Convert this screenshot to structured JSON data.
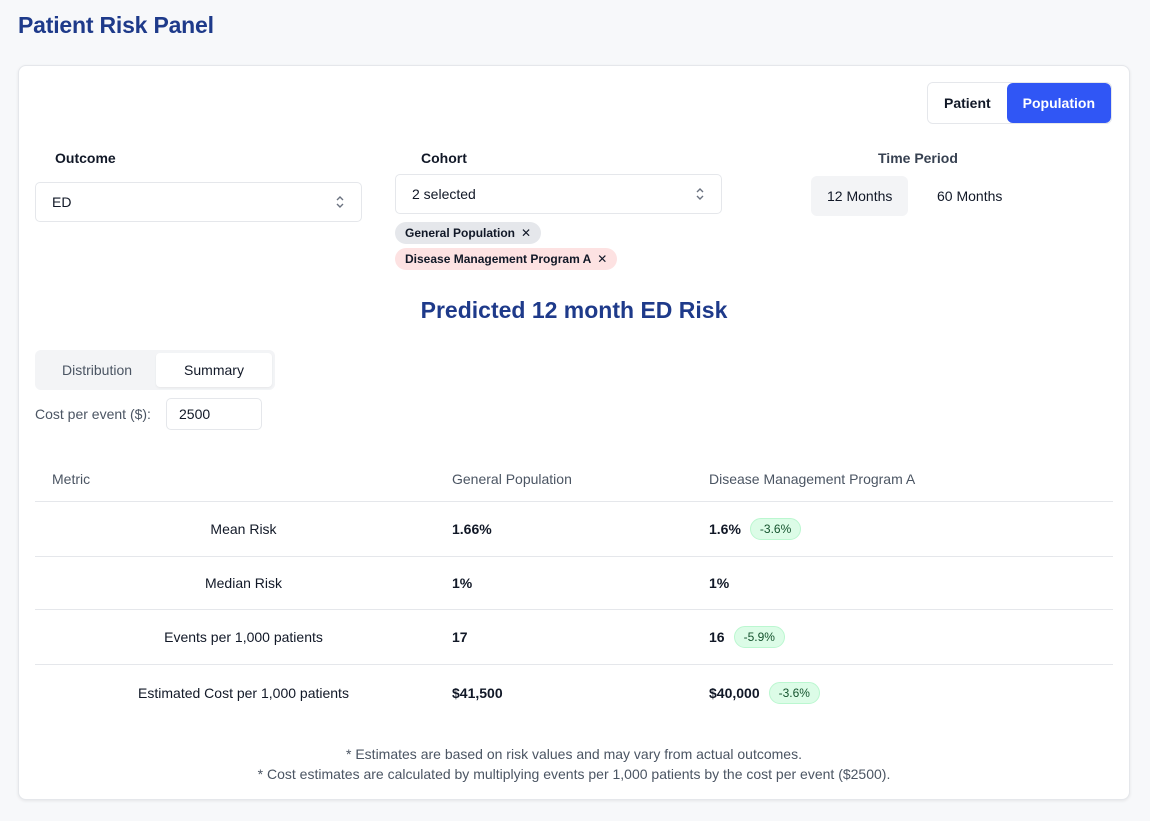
{
  "page_title": "Patient Risk Panel",
  "view_toggle": {
    "patient": "Patient",
    "population": "Population",
    "active": "Population"
  },
  "outcome": {
    "label": "Outcome",
    "value": "ED"
  },
  "cohort": {
    "label": "Cohort",
    "value": "2 selected",
    "chips": [
      {
        "label": "General Population",
        "color": "#e5e7eb"
      },
      {
        "label": "Disease Management Program A",
        "color": "#fde2e2"
      }
    ]
  },
  "time_period": {
    "label": "Time Period",
    "options": [
      "12 Months",
      "60 Months"
    ],
    "active": "12 Months"
  },
  "predicted_title": "Predicted 12 month ED Risk",
  "tabs": {
    "distribution": "Distribution",
    "summary": "Summary",
    "active": "Summary"
  },
  "cost": {
    "label": "Cost per event ($):",
    "value": "2500"
  },
  "table": {
    "headers": [
      "Metric",
      "General Population",
      "Disease Management Program A"
    ],
    "rows": [
      {
        "metric": "Mean Risk",
        "general": "1.66%",
        "program": "1.6%",
        "badge": "-3.6%"
      },
      {
        "metric": "Median Risk",
        "general": "1%",
        "program": "1%",
        "badge": ""
      },
      {
        "metric": "Events per 1,000 patients",
        "general": "17",
        "program": "16",
        "badge": "-5.9%"
      },
      {
        "metric": "Estimated Cost per 1,000 patients",
        "general": "$41,500",
        "program": "$40,000",
        "badge": "-3.6%"
      }
    ]
  },
  "footnotes": [
    "* Estimates are based on risk values and may vary from actual outcomes.",
    "* Cost estimates are calculated by multiplying events per 1,000 patients by the cost per event ($2500)."
  ],
  "colors": {
    "accent": "#3056f5",
    "title": "#1e3a8a",
    "badge_bg": "#dcfce7"
  }
}
